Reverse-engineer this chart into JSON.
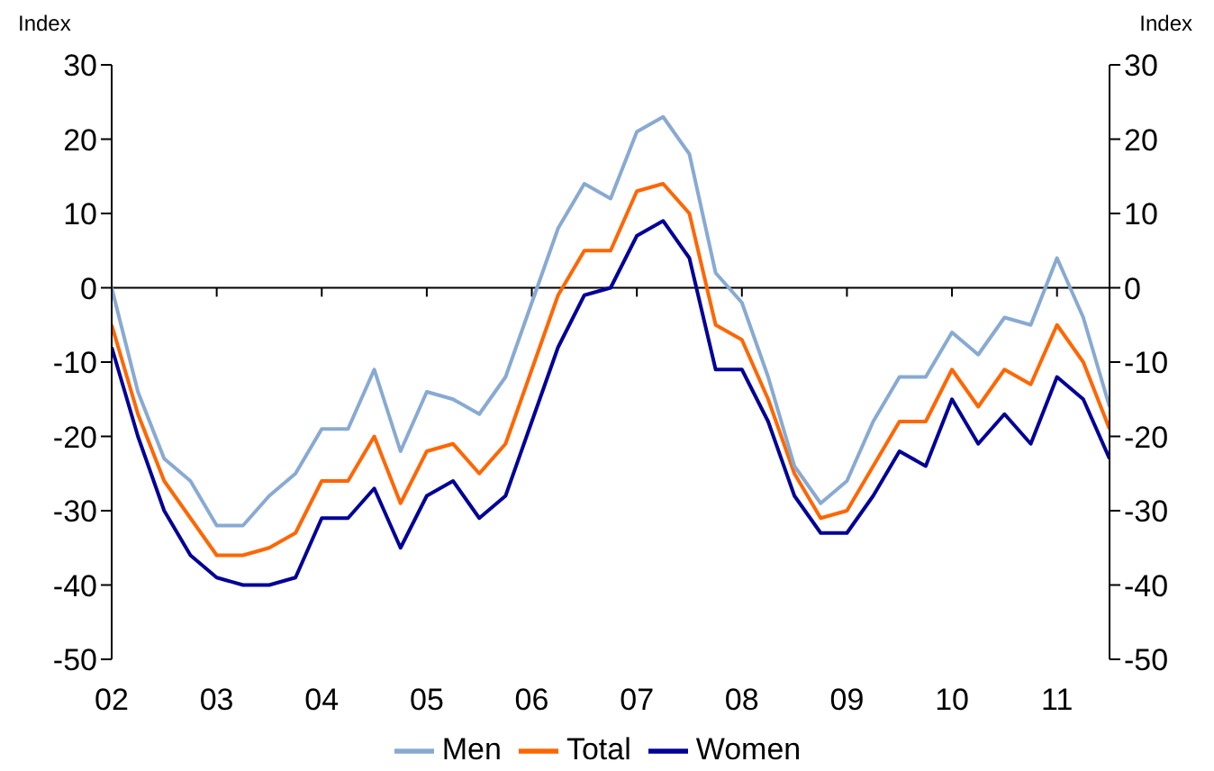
{
  "chart_data": {
    "type": "line",
    "ylabel": "Index",
    "y2label": "Index",
    "x": [
      2002,
      2002.25,
      2002.5,
      2002.75,
      2003,
      2003.25,
      2003.5,
      2003.75,
      2004,
      2004.25,
      2004.5,
      2004.75,
      2005,
      2005.25,
      2005.5,
      2005.75,
      2006,
      2006.25,
      2006.5,
      2006.75,
      2007,
      2007.25,
      2007.5,
      2007.75,
      2008,
      2008.25,
      2008.5,
      2008.75,
      2009,
      2009.25,
      2009.5,
      2009.75,
      2010,
      2010.25,
      2010.5,
      2010.75,
      2011,
      2011.25,
      2011.5
    ],
    "series": [
      {
        "name": "Total",
        "color": "#ff6600",
        "values": [
          -5,
          -17,
          -26,
          -31,
          -36,
          -36,
          -35,
          -33,
          -26,
          -26,
          -20,
          -29,
          -22,
          -21,
          -25,
          -21,
          -11,
          -1,
          5,
          5,
          13,
          14,
          10,
          -5,
          -7,
          -15,
          -25,
          -31,
          -30,
          -24,
          -18,
          -18,
          -11,
          -16,
          -11,
          -13,
          -5,
          -10,
          -19
        ]
      },
      {
        "name": "Women",
        "color": "#000099",
        "values": [
          -8,
          -20,
          -30,
          -36,
          -39,
          -40,
          -40,
          -39,
          -31,
          -31,
          -27,
          -35,
          -28,
          -26,
          -31,
          -28,
          -18,
          -8,
          -1,
          0,
          7,
          9,
          4,
          -11,
          -11,
          -18,
          -28,
          -33,
          -33,
          -28,
          -22,
          -24,
          -15,
          -21,
          -17,
          -21,
          -12,
          -15,
          -23
        ]
      },
      {
        "name": "Men",
        "color": "#88aad2",
        "values": [
          0,
          -14,
          -23,
          -26,
          -32,
          -32,
          -28,
          -25,
          -19,
          -19,
          -11,
          -22,
          -14,
          -15,
          -17,
          -12,
          -2,
          8,
          14,
          12,
          21,
          23,
          18,
          2,
          -2,
          -12,
          -24,
          -29,
          -26,
          -18,
          -12,
          -12,
          -6,
          -9,
          -4,
          -5,
          4,
          -4,
          -16
        ]
      }
    ],
    "xlim": [
      2002,
      2011.5
    ],
    "xticks": [
      {
        "value": 2002,
        "label": "02"
      },
      {
        "value": 2003,
        "label": "03"
      },
      {
        "value": 2004,
        "label": "04"
      },
      {
        "value": 2005,
        "label": "05"
      },
      {
        "value": 2006,
        "label": "06"
      },
      {
        "value": 2007,
        "label": "07"
      },
      {
        "value": 2008,
        "label": "08"
      },
      {
        "value": 2009,
        "label": "09"
      },
      {
        "value": 2010,
        "label": "10"
      },
      {
        "value": 2011,
        "label": "11"
      }
    ],
    "ylim": [
      -50,
      30
    ],
    "yticks": [
      -50,
      -40,
      -30,
      -20,
      -10,
      0,
      10,
      20,
      30
    ],
    "y2lim": [
      -50,
      30
    ],
    "y2ticks": [
      -50,
      -40,
      -30,
      -20,
      -10,
      0,
      10,
      20,
      30
    ],
    "ref_lines": [
      {
        "axis": "y",
        "value": 0,
        "color": "#000000"
      }
    ],
    "grid": false,
    "legend": "bottom",
    "marker": "none",
    "line_style": "solid"
  }
}
